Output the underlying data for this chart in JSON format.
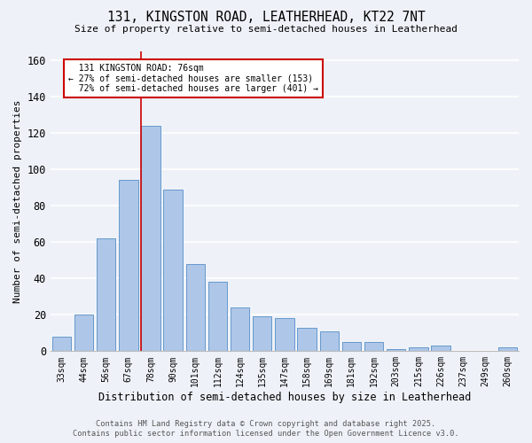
{
  "title_line1": "131, KINGSTON ROAD, LEATHERHEAD, KT22 7NT",
  "title_line2": "Size of property relative to semi-detached houses in Leatherhead",
  "xlabel": "Distribution of semi-detached houses by size in Leatherhead",
  "ylabel": "Number of semi-detached properties",
  "categories": [
    "33sqm",
    "44sqm",
    "56sqm",
    "67sqm",
    "78sqm",
    "90sqm",
    "101sqm",
    "112sqm",
    "124sqm",
    "135sqm",
    "147sqm",
    "158sqm",
    "169sqm",
    "181sqm",
    "192sqm",
    "203sqm",
    "215sqm",
    "226sqm",
    "237sqm",
    "249sqm",
    "260sqm"
  ],
  "values": [
    8,
    20,
    62,
    94,
    124,
    89,
    48,
    38,
    24,
    19,
    18,
    13,
    11,
    5,
    5,
    1,
    2,
    3,
    0,
    0,
    2
  ],
  "bar_color": "#aec6e8",
  "bar_edge_color": "#6699cc",
  "vline_color": "#cc0000",
  "annotation_box_color": "#cc0000",
  "ylim": [
    0,
    165
  ],
  "yticks": [
    0,
    20,
    40,
    60,
    80,
    100,
    120,
    140,
    160
  ],
  "property_label": "131 KINGSTON ROAD: 76sqm",
  "pct_smaller": 27,
  "pct_larger": 72,
  "num_smaller": 153,
  "num_larger": 401,
  "footer_line1": "Contains HM Land Registry data © Crown copyright and database right 2025.",
  "footer_line2": "Contains public sector information licensed under the Open Government Licence v3.0.",
  "bg_color": "#eef2f8",
  "grid_color": "#ffffff"
}
